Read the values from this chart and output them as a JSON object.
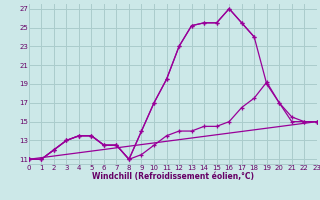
{
  "xlabel": "Windchill (Refroidissement éolien,°C)",
  "bg_color": "#cce8e8",
  "grid_color": "#aacccc",
  "line_color": "#990099",
  "xlim": [
    0,
    23
  ],
  "ylim": [
    10.5,
    27.5
  ],
  "xticks": [
    0,
    1,
    2,
    3,
    4,
    5,
    6,
    7,
    8,
    9,
    10,
    11,
    12,
    13,
    14,
    15,
    16,
    17,
    18,
    19,
    20,
    21,
    22,
    23
  ],
  "yticks": [
    11,
    13,
    15,
    17,
    19,
    21,
    23,
    25,
    27
  ],
  "line1_x": [
    0,
    1,
    2,
    3,
    4,
    5,
    6,
    7,
    8,
    9,
    10,
    11,
    12,
    13,
    14,
    15,
    16,
    17,
    18,
    19,
    20,
    21,
    22,
    23
  ],
  "line1_y": [
    11,
    11,
    12,
    13,
    13.5,
    13.5,
    12.5,
    12.5,
    11,
    14,
    17,
    19.5,
    23,
    25.2,
    25.5,
    25.5,
    27,
    25.5,
    24,
    null,
    null,
    null,
    null,
    null
  ],
  "line2_x": [
    0,
    1,
    2,
    3,
    4,
    5,
    6,
    7,
    8,
    9,
    10,
    11,
    12,
    13,
    14,
    15,
    16,
    17,
    18,
    19,
    20,
    21,
    22,
    23
  ],
  "line2_y": [
    11,
    11,
    12,
    13,
    13.5,
    13.5,
    12.5,
    12.5,
    11,
    14,
    17,
    19.5,
    23,
    25.2,
    25.5,
    25.5,
    27,
    25.5,
    24,
    19,
    17,
    15.5,
    15,
    15
  ],
  "line3_x": [
    0,
    1,
    2,
    3,
    4,
    5,
    6,
    7,
    8,
    9,
    10,
    11,
    12,
    13,
    14,
    15,
    16,
    17,
    18,
    19,
    20,
    21,
    22,
    23
  ],
  "line3_y": [
    11,
    11,
    12,
    13,
    13.5,
    13.5,
    12.5,
    12.5,
    11,
    11.5,
    12.5,
    13.5,
    14,
    14,
    14.5,
    14.5,
    15,
    16.5,
    17.5,
    19.2,
    17,
    15,
    15,
    15
  ],
  "line4_x": [
    0,
    23
  ],
  "line4_y": [
    11,
    15
  ]
}
